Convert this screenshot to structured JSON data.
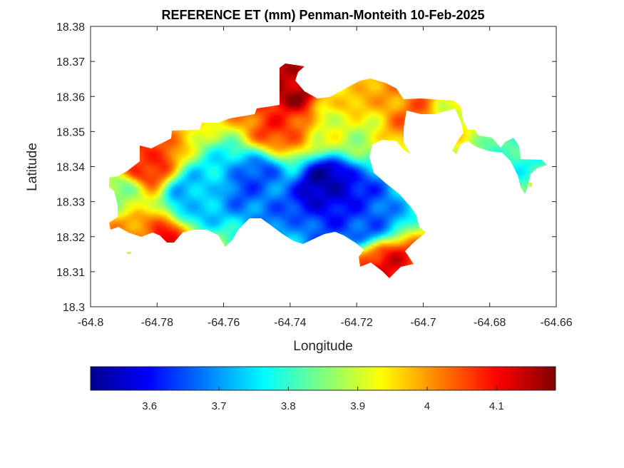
{
  "chart_data": {
    "type": "heatmap",
    "title": "REFERENCE ET (mm) Penman-Monteith 10-Feb-2025",
    "xlabel": "Longitude",
    "ylabel": "Latitude",
    "xlim": [
      -64.8,
      -64.66
    ],
    "ylim": [
      18.3,
      18.38
    ],
    "x_ticks": [
      "-64.8",
      "-64.78",
      "-64.76",
      "-64.74",
      "-64.72",
      "-64.7",
      "-64.68",
      "-64.66"
    ],
    "y_ticks": [
      "18.3",
      "18.31",
      "18.32",
      "18.33",
      "18.34",
      "18.35",
      "18.36",
      "18.37",
      "18.38"
    ],
    "grid": false,
    "colormap": "jet",
    "colorbar": {
      "orientation": "horizontal",
      "position": "below",
      "range": [
        3.515,
        4.185
      ],
      "ticks": [
        "3.6",
        "3.7",
        "3.8",
        "3.9",
        "4",
        "4.1"
      ]
    },
    "value_range": [
      3.52,
      4.18
    ],
    "regions": [
      {
        "lon": -64.728,
        "lat": 18.335,
        "value": 3.55
      },
      {
        "lon": -64.718,
        "lat": 18.325,
        "value": 3.64
      },
      {
        "lon": -64.75,
        "lat": 18.335,
        "value": 3.66
      },
      {
        "lon": -64.77,
        "lat": 18.33,
        "value": 3.72
      },
      {
        "lon": -64.742,
        "lat": 18.352,
        "value": 4.06
      },
      {
        "lon": -64.741,
        "lat": 18.362,
        "value": 4.16
      },
      {
        "lon": -64.784,
        "lat": 18.341,
        "value": 4.08
      },
      {
        "lon": -64.786,
        "lat": 18.322,
        "value": 4.02
      },
      {
        "lon": -64.778,
        "lat": 18.319,
        "value": 4.08
      },
      {
        "lon": -64.712,
        "lat": 18.311,
        "value": 4.1
      },
      {
        "lon": -64.722,
        "lat": 18.361,
        "value": 3.97
      },
      {
        "lon": -64.725,
        "lat": 18.35,
        "value": 3.9
      },
      {
        "lon": -64.704,
        "lat": 18.358,
        "value": 4.02
      },
      {
        "lon": -64.69,
        "lat": 18.355,
        "value": 3.92
      },
      {
        "lon": -64.672,
        "lat": 18.34,
        "value": 3.8
      },
      {
        "lon": -64.79,
        "lat": 18.331,
        "value": 3.86
      }
    ]
  }
}
